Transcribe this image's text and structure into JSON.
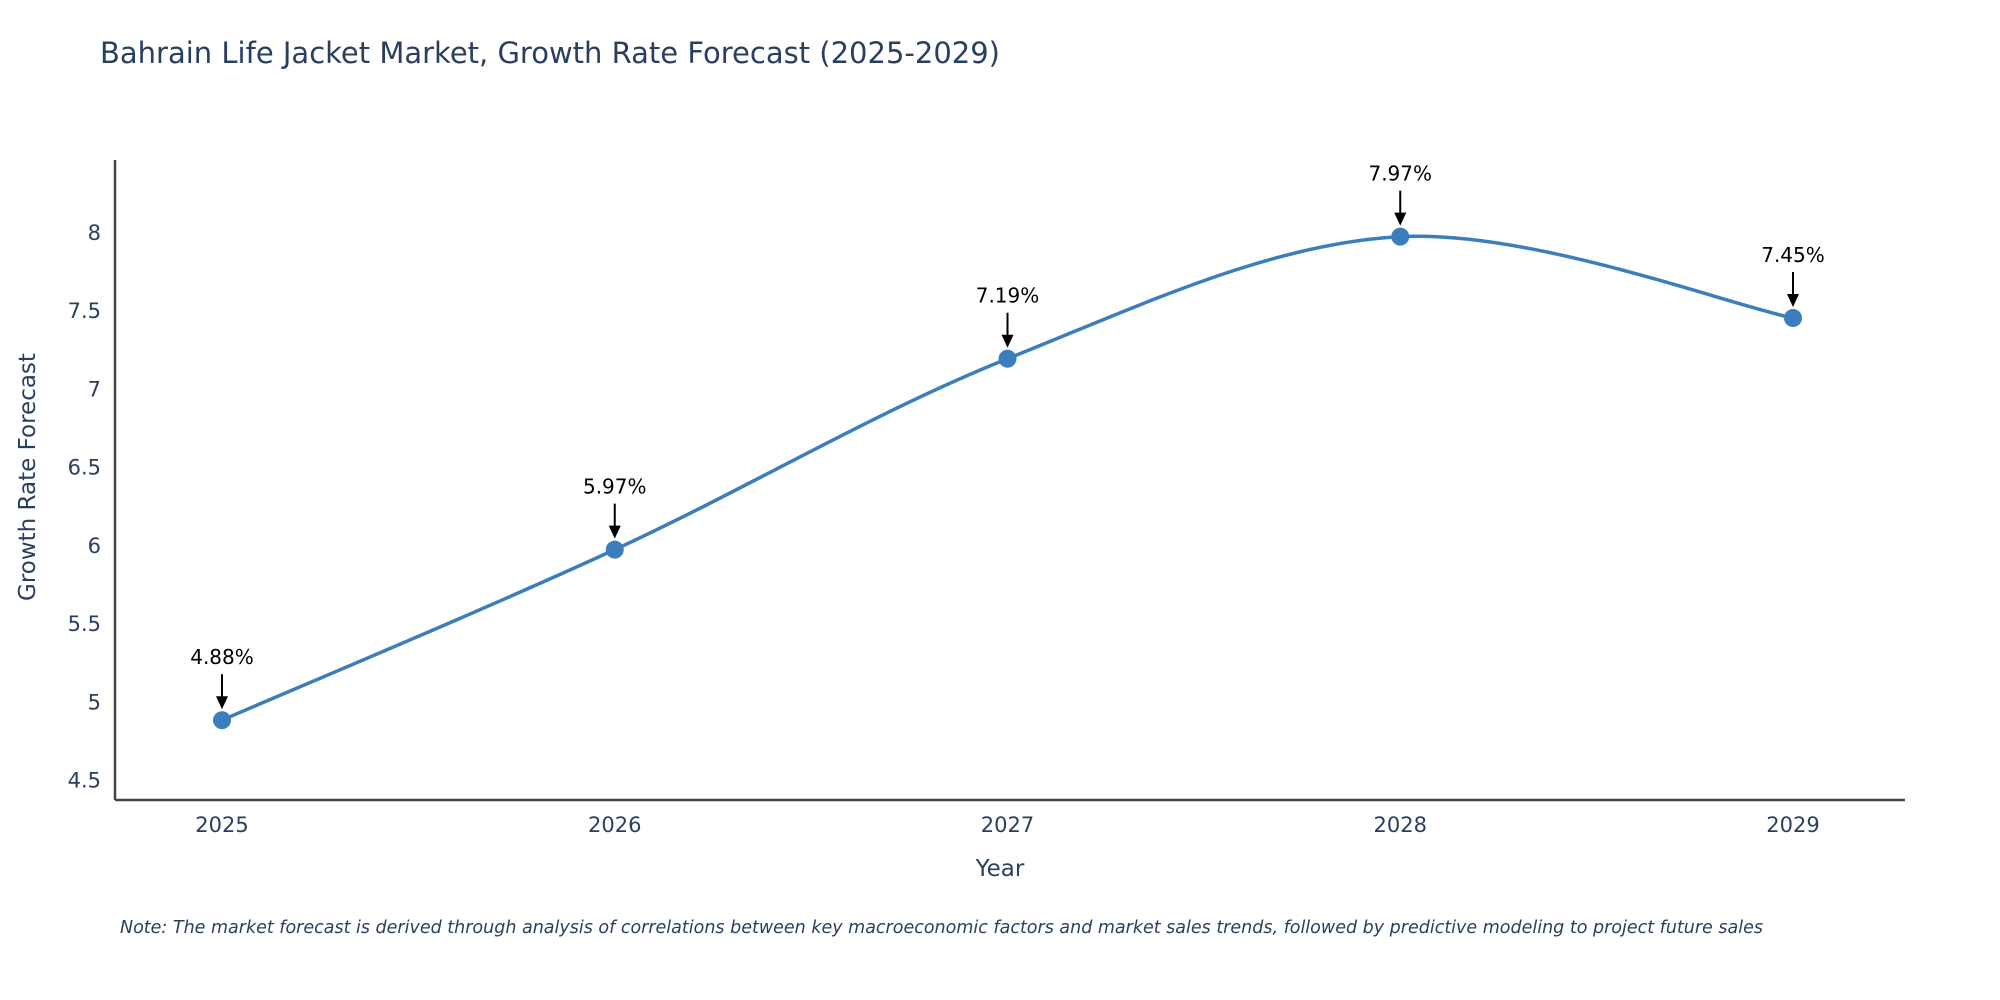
{
  "chart_data": {
    "type": "line",
    "title": "Bahrain Life Jacket Market, Growth Rate Forecast (2025-2029)",
    "xlabel": "Year",
    "ylabel": "Growth Rate Forecast",
    "categories": [
      "2025",
      "2026",
      "2027",
      "2028",
      "2029"
    ],
    "values": [
      4.88,
      5.97,
      7.19,
      7.97,
      7.45
    ],
    "point_labels": [
      "4.88%",
      "5.97%",
      "7.19%",
      "7.97%",
      "7.45%"
    ],
    "yticks": [
      4.5,
      5,
      5.5,
      6,
      6.5,
      7,
      7.5,
      8
    ],
    "ylim": [
      4.37,
      8.46
    ],
    "grid": false,
    "legend": "none",
    "line_color": "#3c7dbb",
    "marker_color": "#3c7dbb",
    "axis_color": "#444444",
    "text_color": "#2a3f5f",
    "annotation_color": "#000000"
  },
  "note": "Note: The market forecast is derived through analysis of correlations between key macroeconomic factors and market sales trends, followed by predictive modeling to project future sales"
}
